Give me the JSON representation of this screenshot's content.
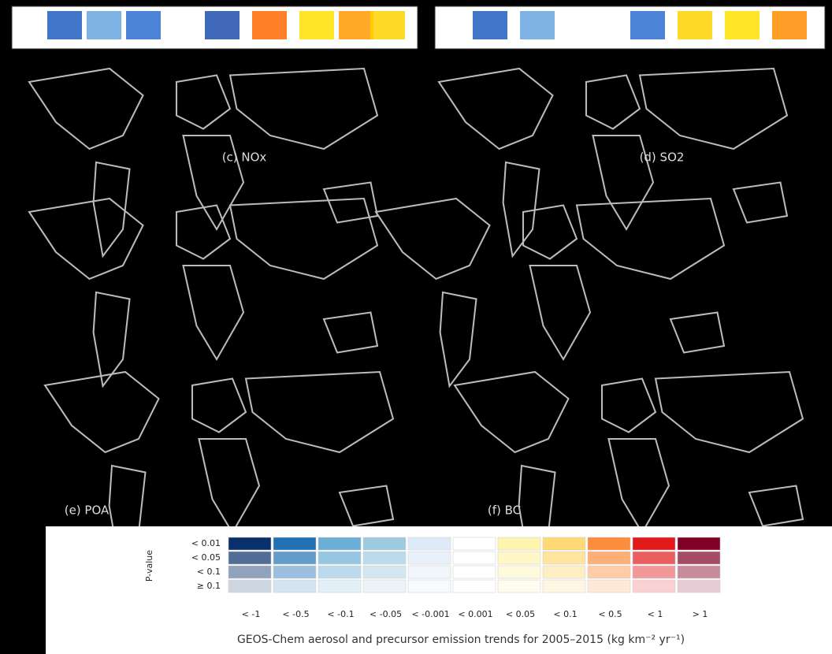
{
  "panels": [
    {
      "label": "(c) NOx"
    },
    {
      "label": "(d) SO2"
    },
    {
      "label": "(e) POA"
    },
    {
      "label": "(f) BC"
    }
  ],
  "legend": {
    "p_value_title": "P-value",
    "p_value_levels": [
      "< 0.01",
      "< 0.05",
      "< 0.1",
      "≥ 0.1"
    ],
    "trend_bins": [
      "< -1",
      "< -0.5",
      "< -0.1",
      "< -0.05",
      "< -0.001",
      "< 0.001",
      "< 0.05",
      "< 0.1",
      "< 0.5",
      "< 1",
      "> 1"
    ]
  },
  "caption": "GEOS-Chem aerosol and precursor emission trends for 2005–2015 (kg km⁻² yr⁻¹)"
}
